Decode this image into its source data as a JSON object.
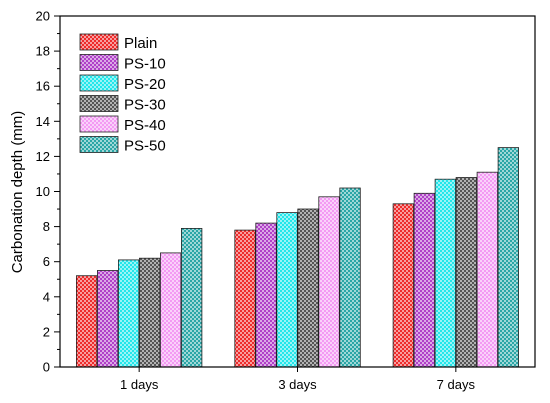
{
  "chart_data": {
    "type": "bar",
    "title": "",
    "xlabel": "",
    "ylabel": "Carbonation depth (mm)",
    "ylim": [
      0,
      20
    ],
    "yticks": [
      0,
      2,
      4,
      6,
      8,
      10,
      12,
      14,
      16,
      18,
      20
    ],
    "categories": [
      "1 days",
      "3 days",
      "7 days"
    ],
    "legend_position": "top-left",
    "grid": false,
    "series": [
      {
        "name": "Plain",
        "color": "#ee2b2b",
        "values": [
          5.2,
          7.8,
          9.3
        ]
      },
      {
        "name": "PS-10",
        "color": "#b040c8",
        "values": [
          5.5,
          8.2,
          9.9
        ]
      },
      {
        "name": "PS-20",
        "color": "#22e6ea",
        "values": [
          6.1,
          8.8,
          10.7
        ]
      },
      {
        "name": "PS-30",
        "color": "#555555",
        "values": [
          6.2,
          9.0,
          10.8
        ]
      },
      {
        "name": "PS-40",
        "color": "#f39af3",
        "values": [
          6.5,
          9.7,
          11.1
        ]
      },
      {
        "name": "PS-50",
        "color": "#2aa6a6",
        "values": [
          7.9,
          10.2,
          12.5
        ]
      }
    ]
  }
}
